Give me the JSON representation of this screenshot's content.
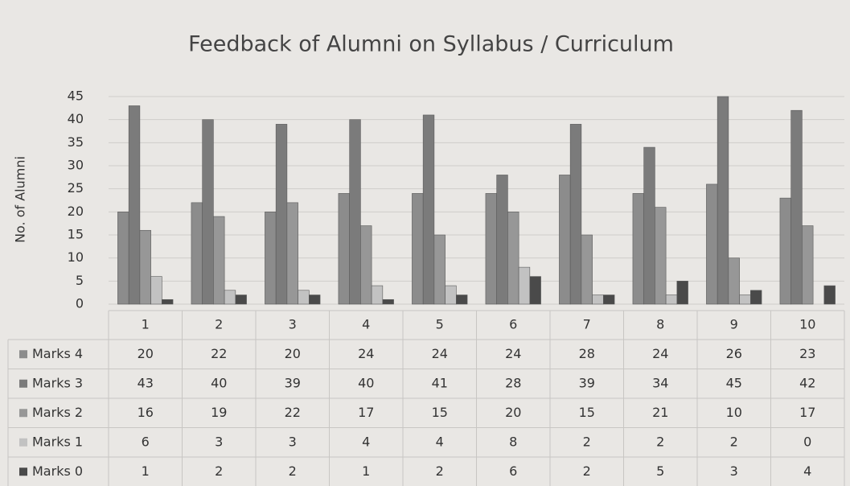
{
  "chart_data": {
    "type": "bar",
    "title": "Feedback of Alumni on Syllabus / Curriculum",
    "y_label": "No. of Alumni",
    "categories": [
      "1",
      "2",
      "3",
      "4",
      "5",
      "6",
      "7",
      "8",
      "9",
      "10"
    ],
    "series": [
      {
        "name": "Marks 4",
        "color": "#8c8c8c",
        "values": [
          20,
          22,
          20,
          24,
          24,
          24,
          28,
          24,
          26,
          23
        ]
      },
      {
        "name": "Marks 3",
        "color": "#7b7b7b",
        "values": [
          43,
          40,
          39,
          40,
          41,
          28,
          39,
          34,
          45,
          42
        ]
      },
      {
        "name": "Marks 2",
        "color": "#979797",
        "values": [
          16,
          19,
          22,
          17,
          15,
          20,
          15,
          21,
          10,
          17
        ]
      },
      {
        "name": "Marks 1",
        "color": "#c2c2c2",
        "values": [
          6,
          3,
          3,
          4,
          4,
          8,
          2,
          2,
          2,
          0
        ]
      },
      {
        "name": "Marks 0",
        "color": "#4a4a4a",
        "values": [
          1,
          2,
          2,
          1,
          2,
          6,
          2,
          5,
          3,
          4
        ]
      }
    ],
    "ylim": [
      0,
      45
    ],
    "yticks": [
      0,
      5,
      10,
      15,
      20,
      25,
      30,
      35,
      40,
      45
    ],
    "grid": true
  }
}
